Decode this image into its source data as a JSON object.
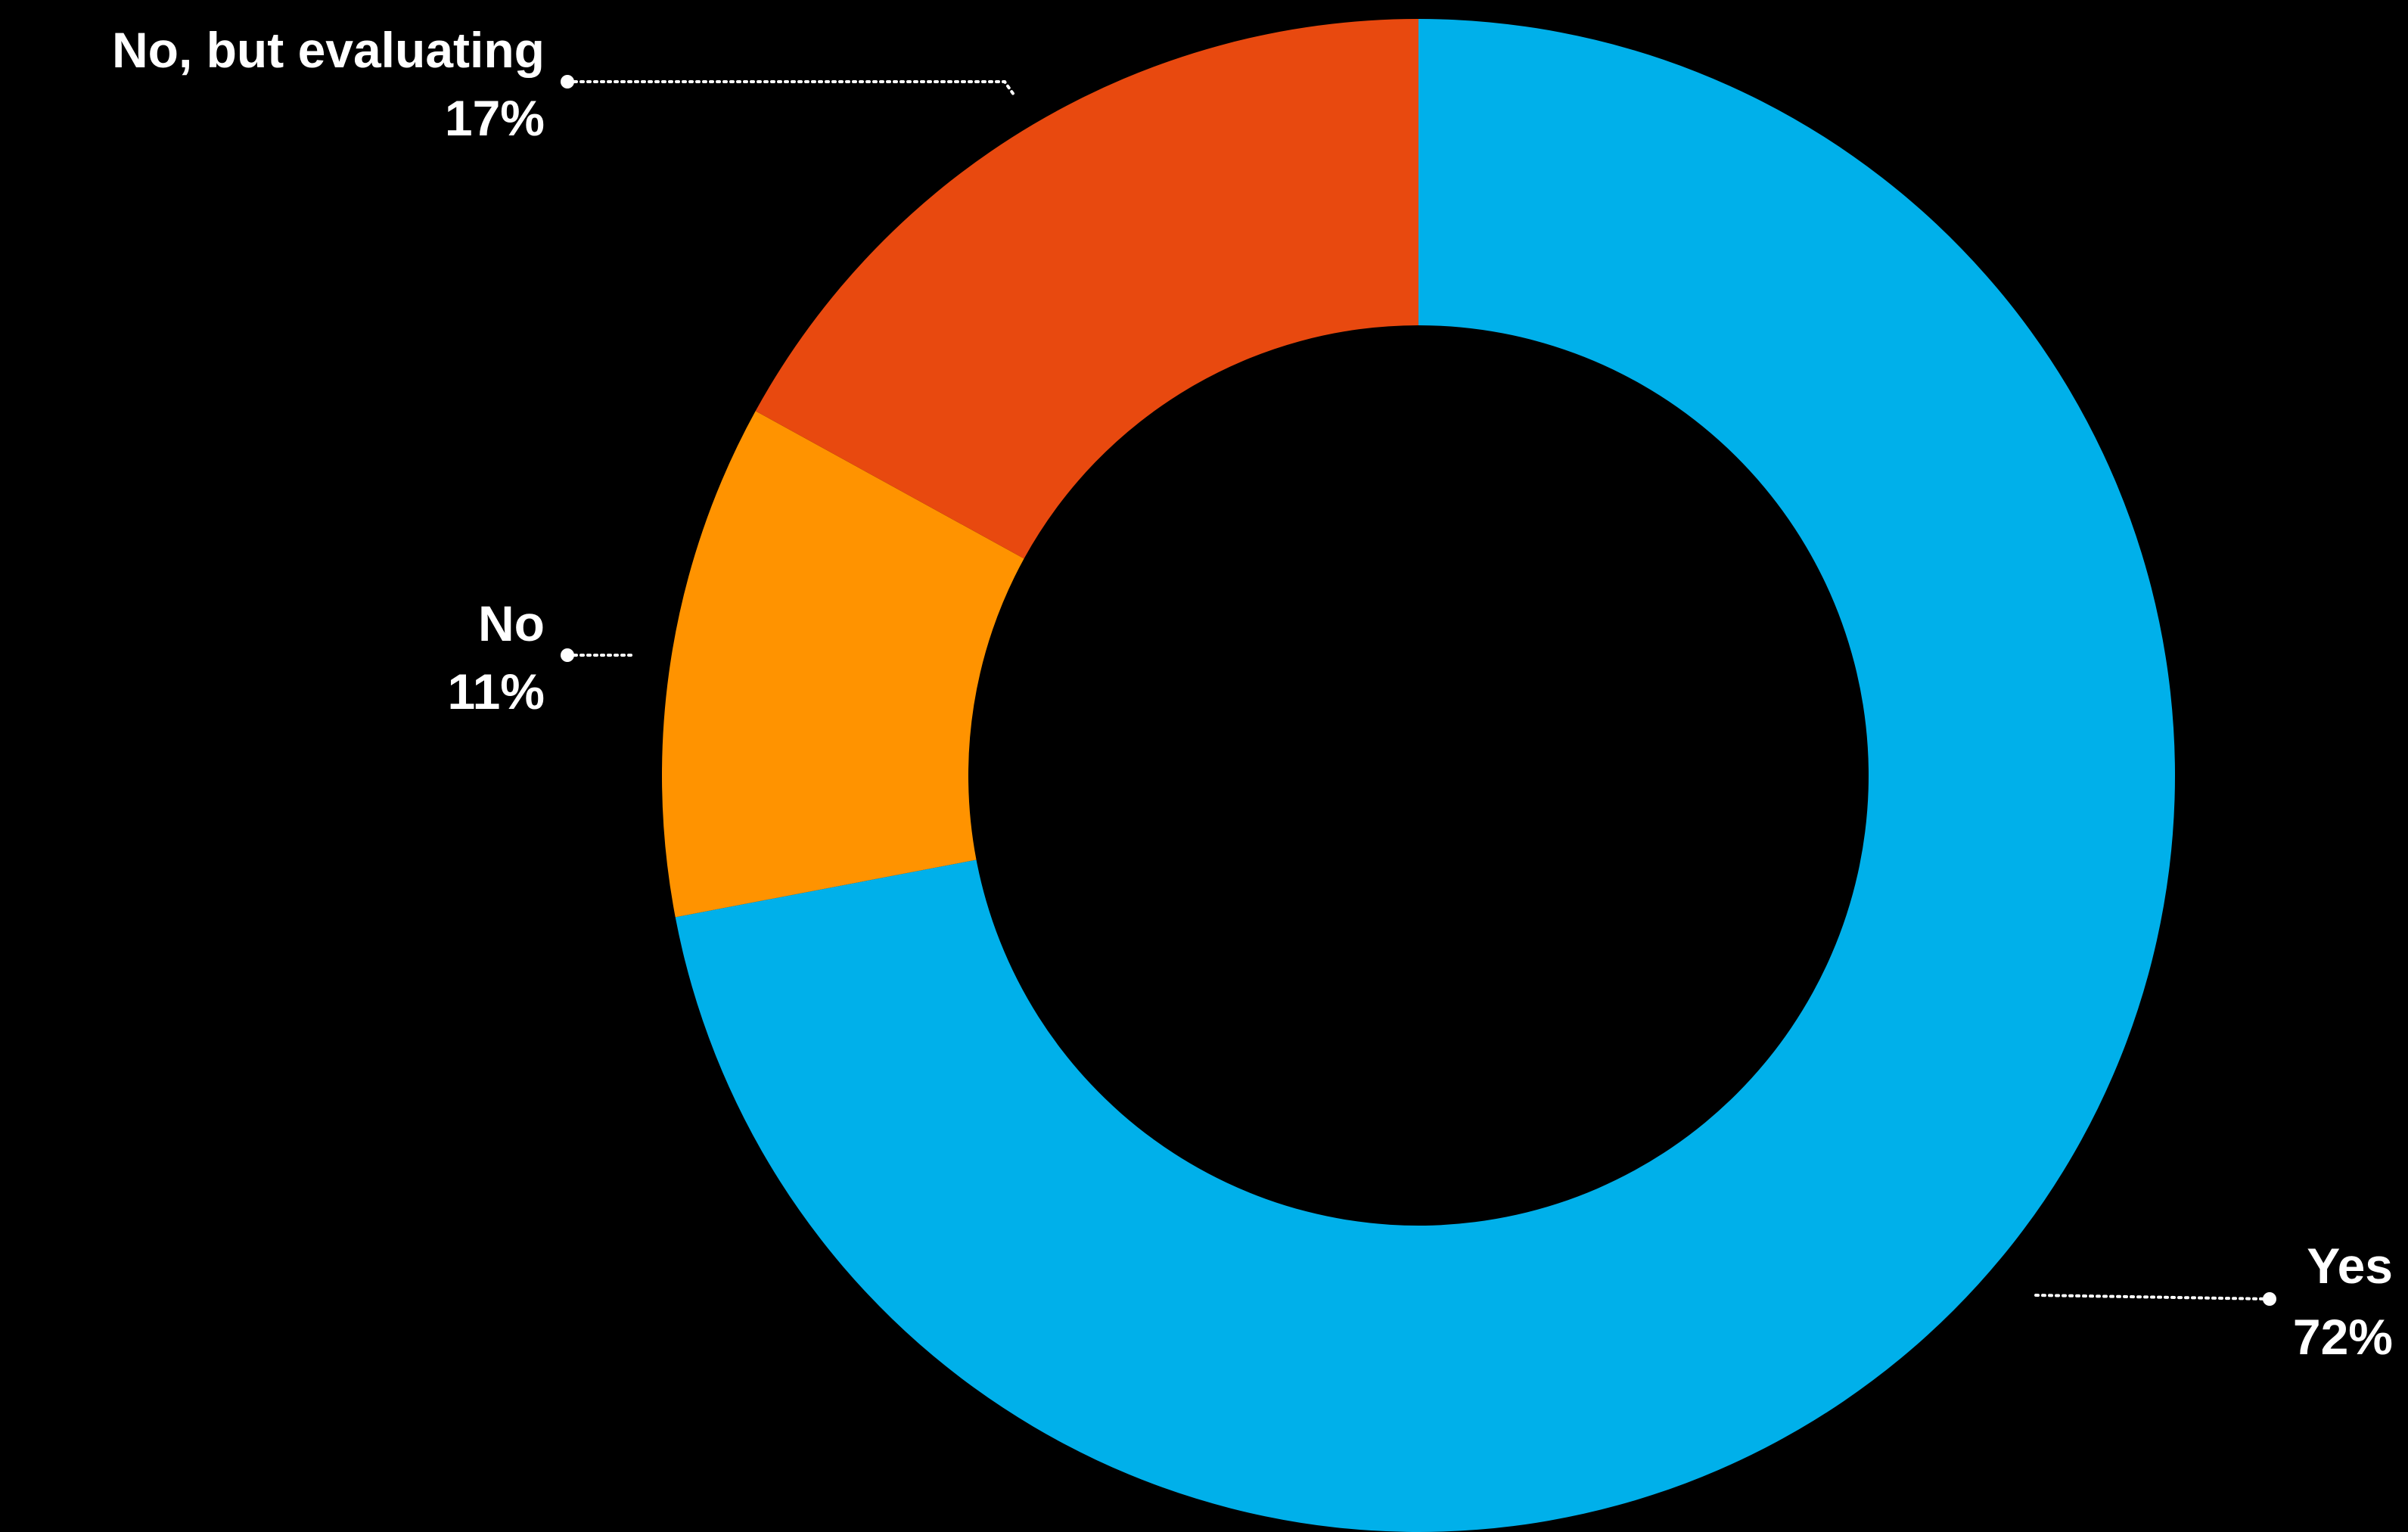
{
  "chart_data": {
    "type": "pie",
    "variant": "donut",
    "title": "",
    "categories": [
      "Yes",
      "No",
      "No, but evaluating"
    ],
    "values": [
      72,
      11,
      17
    ],
    "unit": "%",
    "slices": [
      {
        "label": "Yes",
        "value": 72,
        "value_label": "72%",
        "color": "#00B0EA"
      },
      {
        "label": "No",
        "value": 11,
        "value_label": "11%",
        "color": "#FF9300"
      },
      {
        "label": "No, but evaluating",
        "value": 17,
        "value_label": "17%",
        "color": "#E8490F"
      }
    ],
    "start": "12 o'clock",
    "direction": "clockwise",
    "legend": "none",
    "labels": "outside with dotted leader lines",
    "colors": {
      "background": "#000000",
      "label_text": "#FFFFFF",
      "leader_line": "#FFFFFF"
    }
  }
}
